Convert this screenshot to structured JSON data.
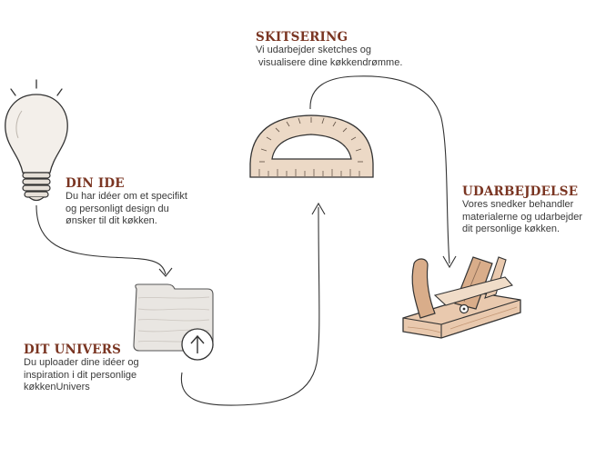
{
  "colors": {
    "heading": "#7a3522",
    "text": "#3a3a3a",
    "line": "#333333",
    "bulb": "#f3efea",
    "folder": "#e9e6e2",
    "wood": "#e9c9ae",
    "wood_dark": "#d9ad8a",
    "protractor": "#ecd9c6"
  },
  "icons": {
    "idea": "lightbulb-icon",
    "univers": "folder-upload-icon",
    "sketch": "protractor-icon",
    "make": "wood-plane-icon"
  },
  "steps": {
    "idea": {
      "title": "DIN IDE",
      "lines": [
        "Du har idéer om et specifikt",
        "og personligt design du",
        "ønsker til dit køkken."
      ]
    },
    "univers": {
      "title": "DIT UNIVERS",
      "lines": [
        "Du uploader dine idéer og",
        "inspiration i dit personlige",
        "køkkenUnivers"
      ]
    },
    "sketch": {
      "title": "SKITSERING",
      "lines": [
        "Vi udarbejder sketches og",
        " visualisere dine køkkendrømme."
      ]
    },
    "make": {
      "title": "UDARBEJDELSE",
      "lines": [
        "Vores snedker behandler",
        "materialerne og udarbejder",
        "dit personlige køkken."
      ]
    }
  }
}
